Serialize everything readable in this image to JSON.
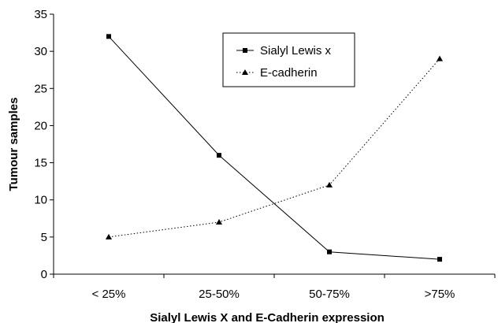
{
  "chart_data": {
    "type": "line",
    "title": "",
    "xlabel": "Sialyl Lewis X and E-Cadherin expression",
    "ylabel": "Tumour samples",
    "categories": [
      "< 25%",
      "25-50%",
      "50-75%",
      ">75%"
    ],
    "ylim": [
      0,
      35
    ],
    "yticks": [
      0,
      5,
      10,
      15,
      20,
      25,
      30,
      35
    ],
    "grid": false,
    "legend_position": "top-center",
    "series": [
      {
        "name": "Sialyl Lewis x",
        "values": [
          32,
          16,
          3,
          2
        ],
        "marker": "square",
        "line_style": "solid",
        "color": "#000000"
      },
      {
        "name": "E-cadherin",
        "values": [
          5,
          7,
          12,
          29
        ],
        "marker": "triangle",
        "line_style": "dotted",
        "color": "#000000"
      }
    ]
  }
}
